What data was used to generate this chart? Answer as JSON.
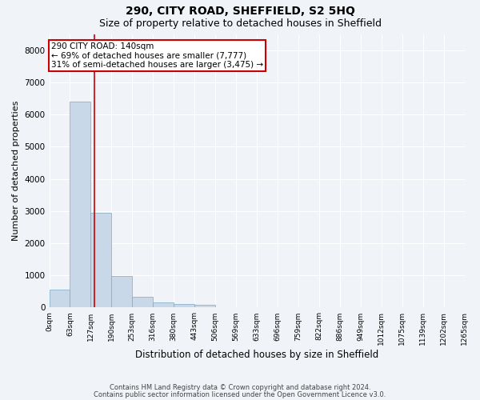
{
  "title1": "290, CITY ROAD, SHEFFIELD, S2 5HQ",
  "title2": "Size of property relative to detached houses in Sheffield",
  "xlabel": "Distribution of detached houses by size in Sheffield",
  "ylabel": "Number of detached properties",
  "bar_values": [
    550,
    6400,
    2950,
    975,
    325,
    150,
    100,
    75,
    0,
    0,
    0,
    0,
    0,
    0,
    0,
    0,
    0,
    0,
    0,
    0
  ],
  "bar_color": "#c8d8e8",
  "bar_edge_color": "#7aaac8",
  "x_labels": [
    "0sqm",
    "63sqm",
    "127sqm",
    "190sqm",
    "253sqm",
    "316sqm",
    "380sqm",
    "443sqm",
    "506sqm",
    "569sqm",
    "633sqm",
    "696sqm",
    "759sqm",
    "822sqm",
    "886sqm",
    "949sqm",
    "1012sqm",
    "1075sqm",
    "1139sqm",
    "1202sqm",
    "1265sqm"
  ],
  "vline_x": 2.18,
  "vline_color": "#cc0000",
  "annotation_text": "290 CITY ROAD: 140sqm\n← 69% of detached houses are smaller (7,777)\n31% of semi-detached houses are larger (3,475) →",
  "annotation_box_color": "#ffffff",
  "annotation_box_edge_color": "#cc0000",
  "ylim": [
    0,
    8500
  ],
  "yticks": [
    0,
    1000,
    2000,
    3000,
    4000,
    5000,
    6000,
    7000,
    8000
  ],
  "footer1": "Contains HM Land Registry data © Crown copyright and database right 2024.",
  "footer2": "Contains public sector information licensed under the Open Government Licence v3.0.",
  "bg_color": "#f0f4f8",
  "grid_color": "#ffffff",
  "title1_fontsize": 10,
  "title2_fontsize": 9,
  "tick_fontsize": 6.5,
  "ylabel_fontsize": 8,
  "xlabel_fontsize": 8.5,
  "footer_fontsize": 6.0
}
